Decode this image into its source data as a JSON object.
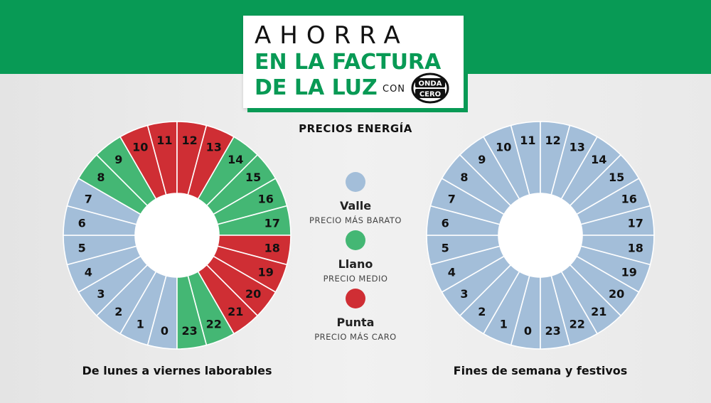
{
  "header": {
    "title_line1": "AHORRA",
    "title_line2": "EN LA FACTURA",
    "title_line3": "DE LA LUZ",
    "con_label": "CON",
    "logo": {
      "top": "ONDA",
      "bottom": "CERO"
    },
    "subtitle": "PRECIOS ENERGÍA"
  },
  "colors": {
    "valle": "#a3bed9",
    "llano": "#44b774",
    "punta": "#cf2e34",
    "brand_green": "#089a55"
  },
  "legend": [
    {
      "key": "valle",
      "name": "Valle",
      "desc": "PRECIO MÁS BARATO"
    },
    {
      "key": "llano",
      "name": "Llano",
      "desc": "PRECIO MEDIO"
    },
    {
      "key": "punta",
      "name": "Punta",
      "desc": "PRECIO MÁS CARO"
    }
  ],
  "chart_data": [
    {
      "type": "pie",
      "caption": "De lunes a viernes laborables",
      "hours": [
        0,
        1,
        2,
        3,
        4,
        5,
        6,
        7,
        8,
        9,
        10,
        11,
        12,
        13,
        14,
        15,
        16,
        17,
        18,
        19,
        20,
        21,
        22,
        23
      ],
      "periods": [
        "valle",
        "valle",
        "valle",
        "valle",
        "valle",
        "valle",
        "valle",
        "valle",
        "llano",
        "llano",
        "punta",
        "punta",
        "punta",
        "punta",
        "llano",
        "llano",
        "llano",
        "llano",
        "punta",
        "punta",
        "punta",
        "punta",
        "llano",
        "llano"
      ]
    },
    {
      "type": "pie",
      "caption": "Fines de semana y festivos",
      "hours": [
        0,
        1,
        2,
        3,
        4,
        5,
        6,
        7,
        8,
        9,
        10,
        11,
        12,
        13,
        14,
        15,
        16,
        17,
        18,
        19,
        20,
        21,
        22,
        23
      ],
      "periods": [
        "valle",
        "valle",
        "valle",
        "valle",
        "valle",
        "valle",
        "valle",
        "valle",
        "valle",
        "valle",
        "valle",
        "valle",
        "valle",
        "valle",
        "valle",
        "valle",
        "valle",
        "valle",
        "valle",
        "valle",
        "valle",
        "valle",
        "valle",
        "valle"
      ]
    }
  ]
}
